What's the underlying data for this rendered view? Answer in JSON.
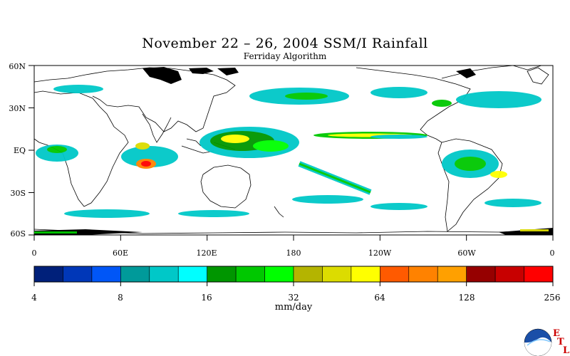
{
  "title": "November 22 – 26, 2004 SSM/I Rainfall",
  "subtitle": "Ferriday Algorithm",
  "lat_labels": [
    "60N",
    "30N",
    "EQ",
    "30S",
    "60S"
  ],
  "lon_labels": [
    "0",
    "60E",
    "120E",
    "180",
    "120W",
    "60W",
    "0"
  ],
  "colorbar": {
    "colors": [
      "#00207a",
      "#0037b8",
      "#0056f7",
      "#009a9a",
      "#00c8c8",
      "#00ffff",
      "#009600",
      "#00c800",
      "#00ff00",
      "#b4b400",
      "#dcdc00",
      "#ffff00",
      "#ff5a00",
      "#ff8200",
      "#ffa000",
      "#960000",
      "#c80000",
      "#ff0000"
    ],
    "tick_labels": [
      "4",
      "8",
      "16",
      "32",
      "64",
      "128",
      "256"
    ],
    "units": "mm/day"
  },
  "logo": {
    "name": "noaa-logo",
    "letters": [
      "E",
      "T",
      "L"
    ]
  }
}
